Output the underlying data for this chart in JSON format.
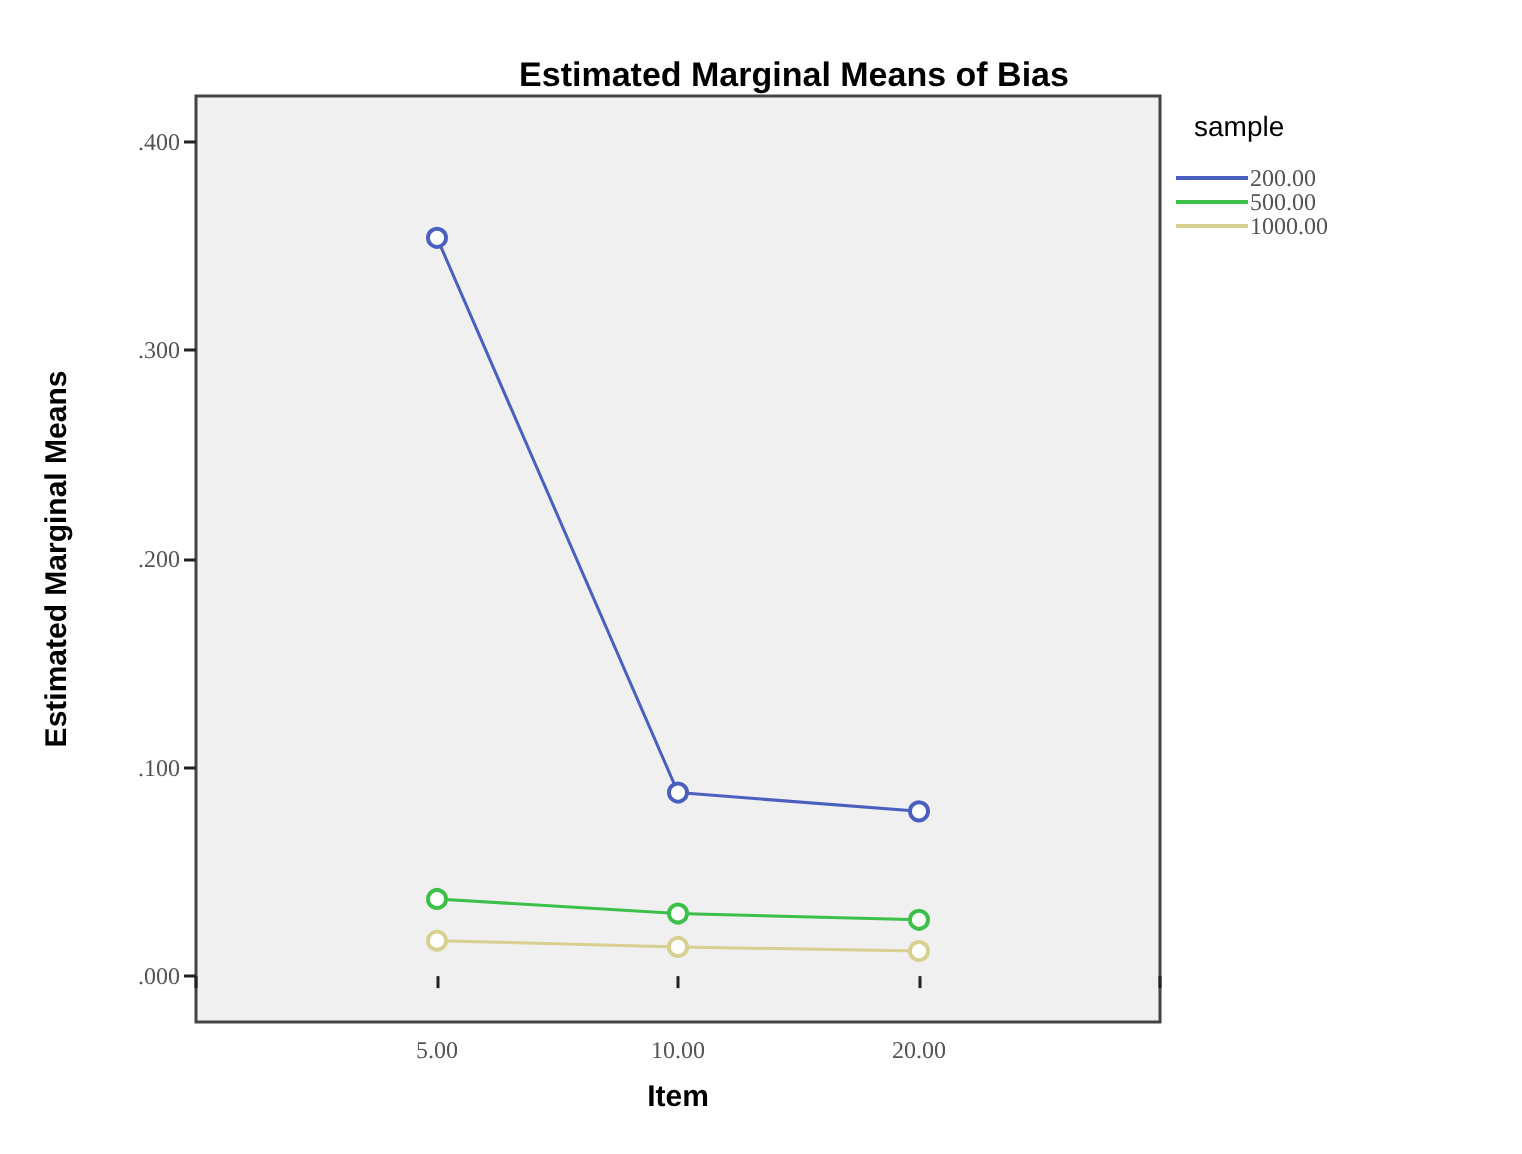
{
  "chart_data": {
    "type": "line",
    "title": "Estimated Marginal Means of Bias",
    "xlabel": "Item",
    "ylabel": "Estimated Marginal Means",
    "legend_title": "sample",
    "categories": [
      "5.00",
      "10.00",
      "20.00"
    ],
    "series": [
      {
        "name": "200.00",
        "color": "#4a5fc0",
        "values": [
          0.354,
          0.088,
          0.079
        ]
      },
      {
        "name": "500.00",
        "color": "#3cc04a",
        "values": [
          0.037,
          0.03,
          0.027
        ]
      },
      {
        "name": "1000.00",
        "color": "#d8d090",
        "values": [
          0.017,
          0.014,
          0.012
        ]
      }
    ],
    "ylim": [
      -0.022,
      0.422
    ],
    "yticks": [
      {
        "value": 0,
        "label": ".000"
      },
      {
        "value": 0.1,
        "label": ".100"
      },
      {
        "value": 0.2,
        "label": ".200"
      },
      {
        "value": 0.3,
        "label": ".300"
      },
      {
        "value": 0.4,
        "label": ".400"
      }
    ],
    "grid": false,
    "legend": "top right",
    "marker": "circle",
    "line_style": "solid"
  }
}
